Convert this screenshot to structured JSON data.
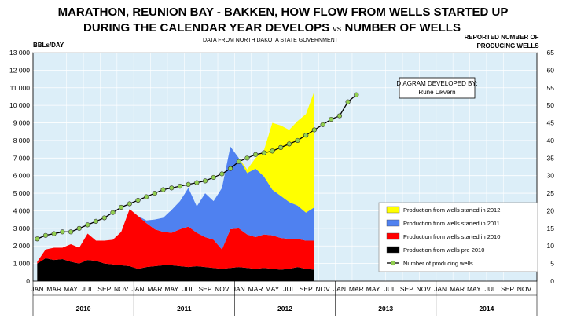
{
  "chart_data": {
    "type": "area",
    "title": "MARATHON, REUNION BAY - BAKKEN, HOW FLOW  FROM WELLS STARTED UP",
    "title_line2_prefix": "DURING THE CALENDAR YEAR DEVELOPS ",
    "title_line2_vs": "vs",
    "title_line2_suffix": " NUMBER OF WELLS",
    "subtitle": "DATA FROM NORTH DAKOTA STATE GOVERNMENT",
    "ylabel_left": "BBLs/DAY",
    "ylabel_right_line1": "REPORTED NUMBER OF",
    "ylabel_right_line2": "PRODUCING WELLS",
    "annotation_line1": "DIAGRAM DEVELOPED BY:",
    "annotation_line2": "Rune Likvern",
    "ylim_left": [
      0,
      13000
    ],
    "ylim_right": [
      0,
      65
    ],
    "y_left_ticks": [
      "0",
      "1 000",
      "2 000",
      "3 000",
      "4 000",
      "5 000",
      "6 000",
      "7 000",
      "8 000",
      "9 000",
      "10 000",
      "11 000",
      "12 000",
      "13 000"
    ],
    "y_right_ticks": [
      "0",
      "5",
      "10",
      "15",
      "20",
      "25",
      "30",
      "35",
      "40",
      "45",
      "50",
      "55",
      "60",
      "65"
    ],
    "x_tick_labels": [
      "JAN",
      "MAR",
      "MAY",
      "JUL",
      "SEP",
      "NOV",
      "JAN",
      "MAR",
      "MAY",
      "JUL",
      "SEP",
      "NOV",
      "JAN",
      "MAR",
      "MAY",
      "JUL",
      "SEP",
      "NOV",
      "JAN",
      "MAR",
      "MAY",
      "JUL",
      "SEP",
      "NOV",
      "JAN",
      "MAR",
      "MAY",
      "JUL",
      "SEP",
      "NOV"
    ],
    "years": [
      "2010",
      "2011",
      "2012",
      "2013",
      "2014"
    ],
    "months_total": 60,
    "grid": true,
    "legend_position": "bottom-right",
    "legend_colors": [
      "#ffff00",
      "#4f81f0",
      "#ff0000",
      "#000000"
    ],
    "series": [
      {
        "name": "Production from wells pre 2010",
        "color": "#000000",
        "values": [
          1000,
          1300,
          1200,
          1250,
          1100,
          1000,
          1200,
          1150,
          1000,
          950,
          900,
          850,
          700,
          800,
          850,
          900,
          900,
          850,
          800,
          850,
          800,
          750,
          700,
          750,
          800,
          750,
          700,
          750,
          700,
          650,
          700,
          800,
          700,
          650
        ]
      },
      {
        "name": "Production from wells started in 2010",
        "color": "#ff0000",
        "values": [
          100,
          500,
          700,
          650,
          1000,
          900,
          1500,
          1150,
          1300,
          1400,
          1900,
          3250,
          3000,
          2500,
          2100,
          1900,
          1850,
          2100,
          2300,
          1900,
          1700,
          1600,
          1100,
          2200,
          2200,
          1900,
          1800,
          1900,
          1900,
          1800,
          1700,
          1600,
          1600,
          1650
        ]
      },
      {
        "name": "Production from wells started in 2011",
        "color": "#4f81f0",
        "values": [
          0,
          0,
          0,
          0,
          0,
          0,
          0,
          0,
          0,
          0,
          0,
          0,
          0,
          150,
          550,
          800,
          1300,
          1600,
          2200,
          1500,
          2500,
          2200,
          3500,
          4700,
          4000,
          3500,
          3900,
          3300,
          2600,
          2400,
          2100,
          1900,
          1600,
          1900
        ]
      },
      {
        "name": "Production from wells started in 2012",
        "color": "#ffff00",
        "values": [
          0,
          0,
          0,
          0,
          0,
          0,
          0,
          0,
          0,
          0,
          0,
          0,
          0,
          0,
          0,
          0,
          0,
          0,
          0,
          0,
          0,
          0,
          0,
          0,
          0,
          200,
          600,
          1500,
          3800,
          4000,
          4100,
          4800,
          5600,
          6600
        ]
      }
    ],
    "wells_series": {
      "name": "Number of producing wells",
      "color": "#92d050",
      "values": [
        12,
        13,
        13.5,
        14,
        14,
        15,
        16,
        17,
        18,
        19.5,
        21,
        22,
        23,
        24,
        25,
        26,
        26.5,
        27,
        27.5,
        28,
        28.5,
        29.5,
        30.5,
        32,
        34,
        35,
        36,
        36.5,
        37,
        38,
        39,
        40,
        41.5,
        43,
        44.5,
        46,
        47,
        51,
        53
      ]
    }
  }
}
